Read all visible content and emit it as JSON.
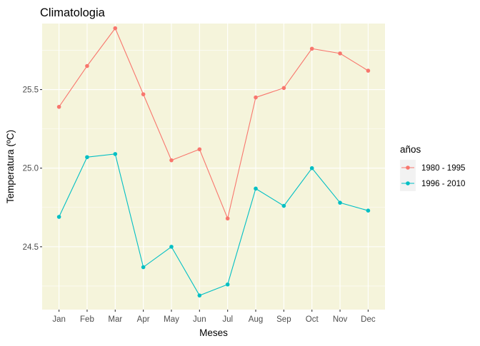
{
  "chart_data": {
    "type": "line",
    "title": "Climatologia",
    "xlabel": "Meses",
    "ylabel": "Temperatura (ºC)",
    "categories": [
      "Jan",
      "Feb",
      "Mar",
      "Apr",
      "May",
      "Jun",
      "Jul",
      "Aug",
      "Sep",
      "Oct",
      "Nov",
      "Dec"
    ],
    "ylim": [
      24.1,
      25.92
    ],
    "yticks": [
      "24.5",
      "25.0",
      "25.5"
    ],
    "legend_title": "años",
    "legend_position": "right",
    "grid": true,
    "panel_background": "#f5f4db",
    "gridline_color": "#ffffff",
    "series": [
      {
        "name": "1980 - 1995",
        "color": "#f8766d",
        "values": [
          25.39,
          25.65,
          25.89,
          25.47,
          25.05,
          25.12,
          24.68,
          25.45,
          25.51,
          25.76,
          25.73,
          25.62
        ]
      },
      {
        "name": "1996 - 2010",
        "color": "#00bfc4",
        "values": [
          24.69,
          25.07,
          25.09,
          24.37,
          24.5,
          24.19,
          24.26,
          24.87,
          24.76,
          25.0,
          24.78,
          24.73
        ]
      }
    ]
  }
}
